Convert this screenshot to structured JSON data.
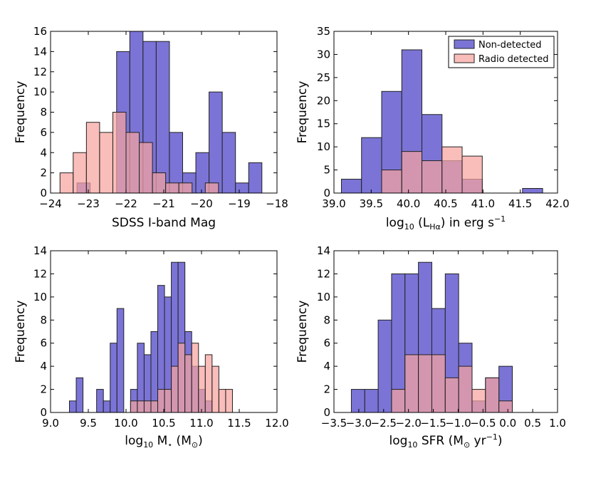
{
  "colors": {
    "non_detected": "#7b74d6",
    "radio_detected": "#f7a3a0",
    "overlap": "#b56aa7",
    "edge": "#222222"
  },
  "legend": {
    "non_detected_label": "Non-detected",
    "radio_detected_label": "Radio detected"
  },
  "chart_data": [
    {
      "type": "histogram",
      "title": "",
      "xlabel": "SDSS I-band Mag",
      "xlabel_parts": [
        "SDSS I-band Mag"
      ],
      "ylabel": "Frequency",
      "xlim": [
        -24,
        -18
      ],
      "ylim": [
        0,
        16
      ],
      "xticks": [
        -24,
        -23,
        -22,
        -21,
        -20,
        -19,
        -18
      ],
      "xtick_labels": [
        "−24",
        "−23",
        "−22",
        "−21",
        "−20",
        "−19",
        "−18"
      ],
      "yticks": [
        0,
        2,
        4,
        6,
        8,
        10,
        12,
        14,
        16
      ],
      "ytick_labels": [
        "0",
        "2",
        "4",
        "6",
        "8",
        "10",
        "12",
        "14",
        "16"
      ],
      "series": [
        {
          "name": "Non-detected",
          "bin_edges": [
            -23.3,
            -22.95,
            -22.6,
            -22.25,
            -21.9,
            -21.55,
            -21.2,
            -20.85,
            -20.5,
            -20.15,
            -19.8,
            -19.45,
            -19.1,
            -18.75,
            -18.4
          ],
          "values": [
            1,
            0,
            0,
            14,
            16,
            15,
            15,
            6,
            2,
            4,
            10,
            6,
            1,
            3
          ]
        },
        {
          "name": "Radio detected",
          "bin_edges": [
            -23.75,
            -23.4,
            -23.05,
            -22.7,
            -22.35,
            -22.0,
            -21.65,
            -21.3,
            -20.95,
            -20.6,
            -20.25,
            -19.9,
            -19.55
          ],
          "values": [
            2,
            4,
            7,
            6,
            8,
            6,
            5,
            2,
            1,
            1,
            0,
            1
          ]
        }
      ]
    },
    {
      "type": "histogram",
      "title": "",
      "xlabel": "log10 (LHα) in erg s−1",
      "xlabel_parts": [
        "log",
        "10",
        " (L",
        "Hα",
        ") in erg s",
        "−1"
      ],
      "ylabel": "Frequency",
      "xlim": [
        39.0,
        42.0
      ],
      "ylim": [
        0,
        35
      ],
      "xticks": [
        39.0,
        39.5,
        40.0,
        40.5,
        41.0,
        41.5,
        42.0
      ],
      "xtick_labels": [
        "39.0",
        "39.5",
        "40.0",
        "40.5",
        "41.0",
        "41.5",
        "42.0"
      ],
      "yticks": [
        0,
        5,
        10,
        15,
        20,
        25,
        30,
        35
      ],
      "ytick_labels": [
        "0",
        "5",
        "10",
        "15",
        "20",
        "25",
        "30",
        "35"
      ],
      "series": [
        {
          "name": "Non-detected",
          "bin_edges": [
            39.1,
            39.37,
            39.64,
            39.91,
            40.18,
            40.45,
            40.72,
            40.99,
            41.26,
            41.53,
            41.8
          ],
          "values": [
            3,
            12,
            22,
            31,
            17,
            7,
            3,
            0,
            0,
            1
          ]
        },
        {
          "name": "Radio detected",
          "bin_edges": [
            39.64,
            39.91,
            40.18,
            40.45,
            40.72,
            40.99
          ],
          "values": [
            5,
            9,
            7,
            10,
            8
          ]
        }
      ]
    },
    {
      "type": "histogram",
      "title": "",
      "xlabel": "log10 M⋆ (M⊙)",
      "xlabel_parts": [
        "log",
        "10",
        " M",
        "⋆",
        " (M",
        "⊙",
        ")"
      ],
      "ylabel": "Frequency",
      "xlim": [
        9.0,
        12.0
      ],
      "ylim": [
        0,
        14
      ],
      "xticks": [
        9.0,
        9.5,
        10.0,
        10.5,
        11.0,
        11.5,
        12.0
      ],
      "xtick_labels": [
        "9.0",
        "9.5",
        "10.0",
        "10.5",
        "11.0",
        "11.5",
        "12.0"
      ],
      "yticks": [
        0,
        2,
        4,
        6,
        8,
        10,
        12,
        14
      ],
      "ytick_labels": [
        "0",
        "2",
        "4",
        "6",
        "8",
        "10",
        "12",
        "14"
      ],
      "series": [
        {
          "name": "Non-detected",
          "bin_edges": [
            9.25,
            9.34,
            9.43,
            9.52,
            9.61,
            9.7,
            9.79,
            9.88,
            9.97,
            10.06,
            10.15,
            10.24,
            10.33,
            10.42,
            10.51,
            10.6,
            10.69,
            10.78,
            10.87,
            10.96,
            11.05,
            11.14
          ],
          "values": [
            1,
            3,
            0,
            0,
            2,
            1,
            6,
            9,
            0,
            2,
            6,
            5,
            7,
            11,
            10,
            13,
            13,
            7,
            4,
            2,
            1
          ]
        },
        {
          "name": "Radio detected",
          "bin_edges": [
            10.06,
            10.15,
            10.24,
            10.33,
            10.42,
            10.51,
            10.6,
            10.69,
            10.78,
            10.87,
            10.96,
            11.05,
            11.14,
            11.23,
            11.32,
            11.41
          ],
          "values": [
            1,
            1,
            1,
            1,
            2,
            2,
            4,
            6,
            5,
            6,
            4,
            5,
            4,
            2,
            2
          ]
        }
      ]
    },
    {
      "type": "histogram",
      "title": "",
      "xlabel": "log10 SFR (M⊙ yr−1)",
      "xlabel_parts": [
        "log",
        "10",
        " SFR (M",
        "⊙",
        " yr",
        "−1",
        ")"
      ],
      "ylabel": "Frequency",
      "xlim": [
        -3.5,
        1.0
      ],
      "ylim": [
        0,
        14
      ],
      "xticks": [
        -3.5,
        -3.0,
        -2.5,
        -2.0,
        -1.5,
        -1.0,
        -0.5,
        0.0,
        0.5,
        1.0
      ],
      "xtick_labels": [
        "−3.5",
        "−3.0",
        "−2.5",
        "−2.0",
        "−1.5",
        "−1.0",
        "−0.5",
        "0.0",
        "0.5",
        "1.0"
      ],
      "yticks": [
        0,
        2,
        4,
        6,
        8,
        10,
        12,
        14
      ],
      "ytick_labels": [
        "0",
        "2",
        "4",
        "6",
        "8",
        "10",
        "12",
        "14"
      ],
      "series": [
        {
          "name": "Non-detected",
          "bin_edges": [
            -3.15,
            -2.88,
            -2.61,
            -2.34,
            -2.07,
            -1.8,
            -1.53,
            -1.26,
            -0.99,
            -0.72,
            -0.45,
            -0.18,
            0.09
          ],
          "values": [
            2,
            2,
            8,
            12,
            12,
            13,
            9,
            12,
            6,
            1,
            3,
            4
          ]
        },
        {
          "name": "Radio detected",
          "bin_edges": [
            -2.61,
            -2.34,
            -2.07,
            -1.8,
            -1.53,
            -1.26,
            -0.99,
            -0.72,
            -0.45,
            -0.18,
            0.09,
            0.36,
            0.63,
            0.9
          ],
          "values": [
            0,
            2,
            5,
            5,
            5,
            3,
            4,
            2,
            3,
            1,
            0,
            0,
            0
          ]
        }
      ]
    }
  ]
}
